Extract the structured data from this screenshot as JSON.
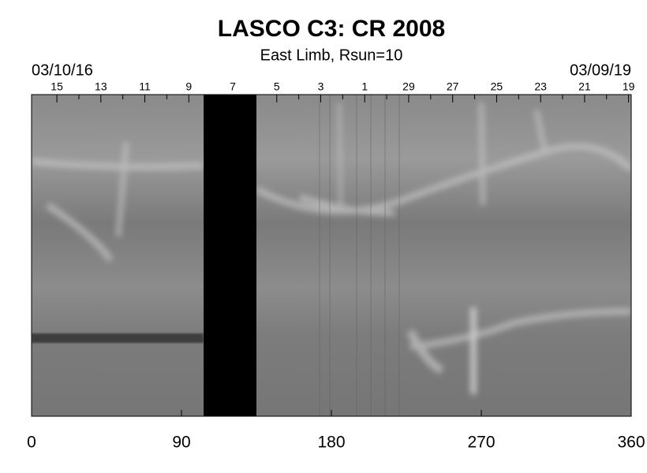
{
  "chart_data": {
    "type": "synoptic-map",
    "title": "LASCO C3: CR 2008",
    "subtitle": "East Limb, Rsun=10",
    "start_label": "03/10/16",
    "end_label": "03/09/19",
    "xlim": [
      0,
      360
    ],
    "xticks": [
      0,
      90,
      180,
      270,
      360
    ],
    "top_ticks": [
      {
        "value": 15.2,
        "label": "15"
      },
      {
        "value": 41.6,
        "label": "13"
      },
      {
        "value": 68.0,
        "label": "11"
      },
      {
        "value": 94.4,
        "label": "9"
      },
      {
        "value": 120.8,
        "label": "7"
      },
      {
        "value": 147.2,
        "label": "5"
      },
      {
        "value": 173.6,
        "label": "3"
      },
      {
        "value": 200.0,
        "label": "1"
      },
      {
        "value": 226.4,
        "label": "29"
      },
      {
        "value": 252.8,
        "label": "27"
      },
      {
        "value": 279.2,
        "label": "25"
      },
      {
        "value": 305.6,
        "label": "23"
      },
      {
        "value": 332.0,
        "label": "21"
      },
      {
        "value": 358.4,
        "label": "19"
      }
    ],
    "top_minor_ticks": [
      28.4,
      54.8,
      81.2,
      107.6,
      134.0,
      160.4,
      186.8,
      213.2,
      239.6,
      266.0,
      292.4,
      318.8,
      345.2
    ],
    "data_gap": [
      103.3,
      135.0
    ],
    "gap_color": "#000000"
  }
}
